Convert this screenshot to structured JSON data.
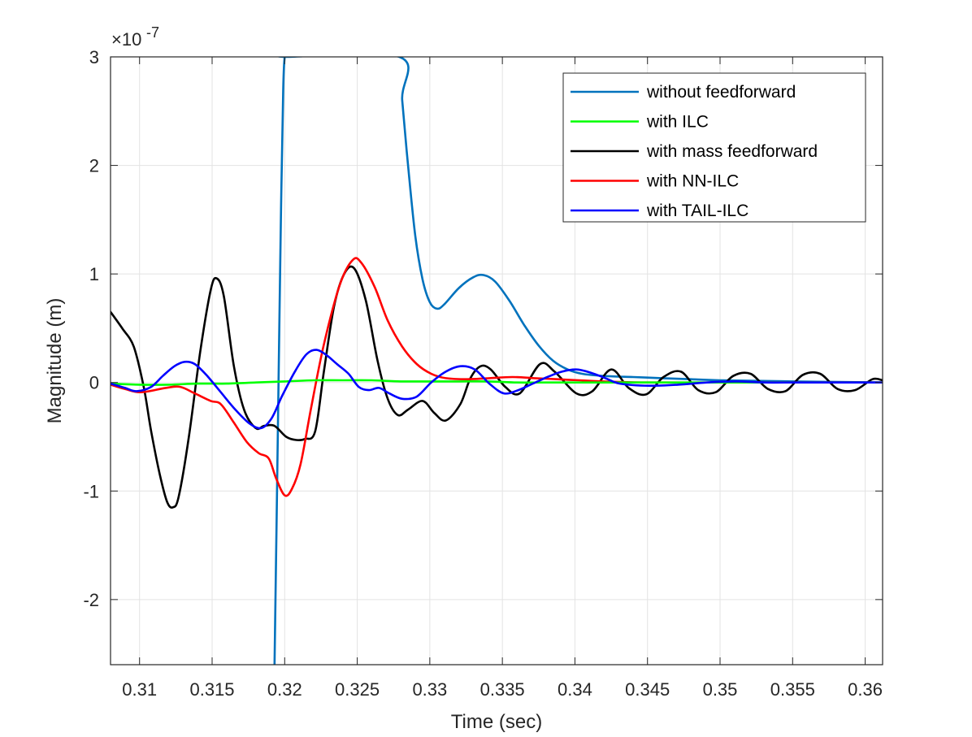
{
  "chart_data": {
    "type": "line",
    "xlabel": "Time (sec)",
    "ylabel": "Magnitude (m)",
    "y_exponent_base": "×10",
    "y_exponent_power": "-7",
    "xlim": [
      0.308,
      0.3612
    ],
    "ylim": [
      -2.6,
      3.0
    ],
    "x_ticks": [
      0.31,
      0.315,
      0.32,
      0.325,
      0.33,
      0.335,
      0.34,
      0.345,
      0.35,
      0.355,
      0.36
    ],
    "x_tick_labels": [
      "0.31",
      "0.315",
      "0.32",
      "0.325",
      "0.33",
      "0.335",
      "0.34",
      "0.345",
      "0.35",
      "0.355",
      "0.36"
    ],
    "y_ticks": [
      -2,
      -1,
      0,
      1,
      2,
      3
    ],
    "y_tick_labels": [
      "-2",
      "-1",
      "0",
      "1",
      "2",
      "3"
    ],
    "grid": true,
    "legend_position": "top-right",
    "series": [
      {
        "name": "without feedforward",
        "color": "#0072bd",
        "x": [
          0.3193,
          0.31945,
          0.3196,
          0.31975,
          0.3199,
          0.32,
          0.3201,
          0.3279,
          0.3281,
          0.3285,
          0.329,
          0.3295,
          0.33,
          0.3305,
          0.331,
          0.332,
          0.333,
          0.3337,
          0.3345,
          0.3355,
          0.3365,
          0.3375,
          0.3385,
          0.3395,
          0.3405,
          0.342,
          0.344,
          0.346,
          0.348,
          0.35,
          0.355,
          0.3612
        ],
        "y": [
          -2.6,
          -1.2,
          0.2,
          1.6,
          2.7,
          3.0,
          3.0,
          3.0,
          2.6,
          2.0,
          1.35,
          0.95,
          0.74,
          0.68,
          0.72,
          0.87,
          0.97,
          0.99,
          0.93,
          0.75,
          0.53,
          0.34,
          0.2,
          0.12,
          0.08,
          0.06,
          0.05,
          0.04,
          0.03,
          0.02,
          0.01,
          0.0
        ]
      },
      {
        "name": "with ILC",
        "color": "#00ff00",
        "x": [
          0.308,
          0.31,
          0.312,
          0.314,
          0.316,
          0.318,
          0.32,
          0.322,
          0.324,
          0.326,
          0.328,
          0.33,
          0.332,
          0.334,
          0.336,
          0.338,
          0.34,
          0.345,
          0.35,
          0.355,
          0.3612
        ],
        "y": [
          -0.01,
          -0.02,
          -0.02,
          -0.01,
          -0.01,
          0.0,
          0.01,
          0.02,
          0.02,
          0.02,
          0.01,
          0.01,
          0.01,
          0.01,
          0.0,
          0.0,
          0.0,
          0.0,
          0.0,
          0.0,
          0.0
        ]
      },
      {
        "name": "with mass feedforward",
        "color": "#000000",
        "x": [
          0.308,
          0.3088,
          0.3096,
          0.3103,
          0.3108,
          0.3114,
          0.3119,
          0.3123,
          0.3127,
          0.3134,
          0.3142,
          0.3149,
          0.3153,
          0.3158,
          0.3165,
          0.3172,
          0.318,
          0.3186,
          0.3193,
          0.3201,
          0.3208,
          0.3214,
          0.3221,
          0.3227,
          0.3234,
          0.3241,
          0.3248,
          0.3256,
          0.3264,
          0.3271,
          0.3278,
          0.3285,
          0.3295,
          0.3303,
          0.3311,
          0.3321,
          0.3328,
          0.3335,
          0.3342,
          0.3352,
          0.3362,
          0.3376,
          0.3386,
          0.3401,
          0.3412,
          0.3425,
          0.3437,
          0.3449,
          0.3461,
          0.3473,
          0.3485,
          0.3497,
          0.3509,
          0.3521,
          0.3533,
          0.3545,
          0.3557,
          0.3569,
          0.3581,
          0.3593,
          0.3605,
          0.3612
        ],
        "y": [
          0.65,
          0.5,
          0.33,
          -0.05,
          -0.45,
          -0.85,
          -1.1,
          -1.15,
          -1.05,
          -0.5,
          0.3,
          0.85,
          0.96,
          0.8,
          0.15,
          -0.25,
          -0.42,
          -0.4,
          -0.4,
          -0.5,
          -0.53,
          -0.52,
          -0.45,
          0.1,
          0.7,
          1.0,
          1.05,
          0.75,
          0.2,
          -0.15,
          -0.3,
          -0.25,
          -0.17,
          -0.28,
          -0.35,
          -0.2,
          0.04,
          0.15,
          0.12,
          -0.04,
          -0.1,
          0.17,
          0.1,
          -0.1,
          -0.08,
          0.12,
          -0.05,
          -0.11,
          0.05,
          0.1,
          -0.07,
          -0.09,
          0.06,
          0.08,
          -0.06,
          -0.08,
          0.07,
          0.08,
          -0.06,
          -0.07,
          0.03,
          0.02
        ]
      },
      {
        "name": "with NN-ILC",
        "color": "#ff0000",
        "x": [
          0.308,
          0.309,
          0.3101,
          0.3118,
          0.3128,
          0.3138,
          0.3149,
          0.3156,
          0.3165,
          0.3174,
          0.3182,
          0.3189,
          0.3194,
          0.32,
          0.3205,
          0.3211,
          0.3218,
          0.3227,
          0.3238,
          0.3247,
          0.3253,
          0.3262,
          0.3271,
          0.3281,
          0.3291,
          0.3301,
          0.3311,
          0.3326,
          0.3341,
          0.3357,
          0.3372,
          0.3388,
          0.3403,
          0.3419,
          0.345,
          0.35,
          0.355,
          0.3612
        ],
        "y": [
          -0.02,
          -0.06,
          -0.09,
          -0.05,
          -0.04,
          -0.1,
          -0.17,
          -0.2,
          -0.37,
          -0.55,
          -0.65,
          -0.7,
          -0.88,
          -1.04,
          -0.98,
          -0.75,
          -0.25,
          0.35,
          0.9,
          1.13,
          1.1,
          0.88,
          0.57,
          0.33,
          0.17,
          0.08,
          0.04,
          0.03,
          0.04,
          0.05,
          0.04,
          0.03,
          0.02,
          0.01,
          0.0,
          0.0,
          0.0,
          0.0
        ]
      },
      {
        "name": "with TAIL-ILC",
        "color": "#0000ff",
        "x": [
          0.308,
          0.309,
          0.3098,
          0.3108,
          0.3116,
          0.3124,
          0.3131,
          0.3138,
          0.3146,
          0.3156,
          0.3166,
          0.3176,
          0.3184,
          0.3191,
          0.3198,
          0.3207,
          0.3215,
          0.3222,
          0.3229,
          0.3236,
          0.3244,
          0.3251,
          0.3258,
          0.3265,
          0.3272,
          0.3281,
          0.3291,
          0.3301,
          0.3311,
          0.3321,
          0.3331,
          0.3341,
          0.3351,
          0.3361,
          0.3371,
          0.3381,
          0.3391,
          0.3401,
          0.3411,
          0.3421,
          0.3431,
          0.3451,
          0.3471,
          0.3491,
          0.3511,
          0.3531,
          0.3551,
          0.3571,
          0.3591,
          0.3612
        ],
        "y": [
          -0.01,
          -0.05,
          -0.08,
          -0.04,
          0.06,
          0.15,
          0.19,
          0.17,
          0.07,
          -0.09,
          -0.25,
          -0.38,
          -0.42,
          -0.33,
          -0.13,
          0.1,
          0.26,
          0.3,
          0.25,
          0.17,
          0.08,
          -0.04,
          -0.07,
          -0.05,
          -0.1,
          -0.15,
          -0.13,
          0.0,
          0.1,
          0.15,
          0.12,
          -0.01,
          -0.1,
          -0.07,
          -0.01,
          0.05,
          0.1,
          0.12,
          0.09,
          0.04,
          -0.01,
          -0.03,
          -0.02,
          0.0,
          0.01,
          0.0,
          0.0,
          0.0,
          0.0,
          0.0
        ]
      }
    ]
  }
}
